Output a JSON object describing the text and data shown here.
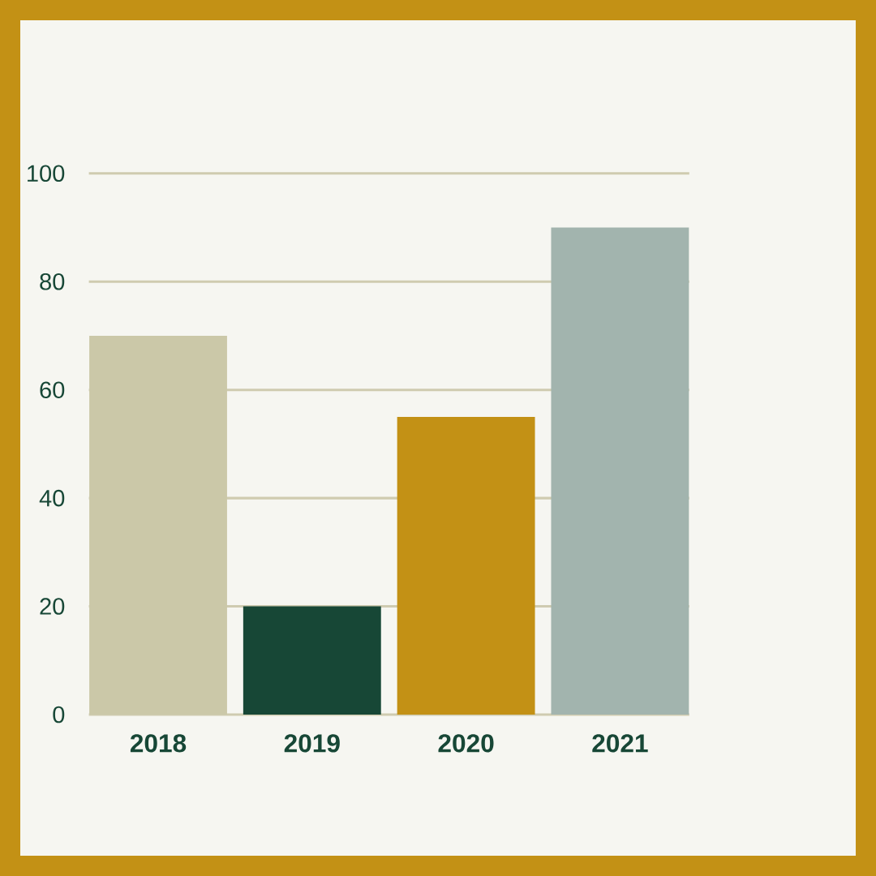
{
  "chart_data": {
    "type": "bar",
    "categories": [
      "2018",
      "2019",
      "2020",
      "2021"
    ],
    "values": [
      70,
      20,
      55,
      90
    ],
    "colors": [
      "#cbc8a8",
      "#174736",
      "#c39115",
      "#a2b4ae"
    ],
    "ylim": [
      0,
      100
    ],
    "yticks": [
      0,
      20,
      40,
      60,
      80,
      100
    ],
    "grid": "y"
  }
}
